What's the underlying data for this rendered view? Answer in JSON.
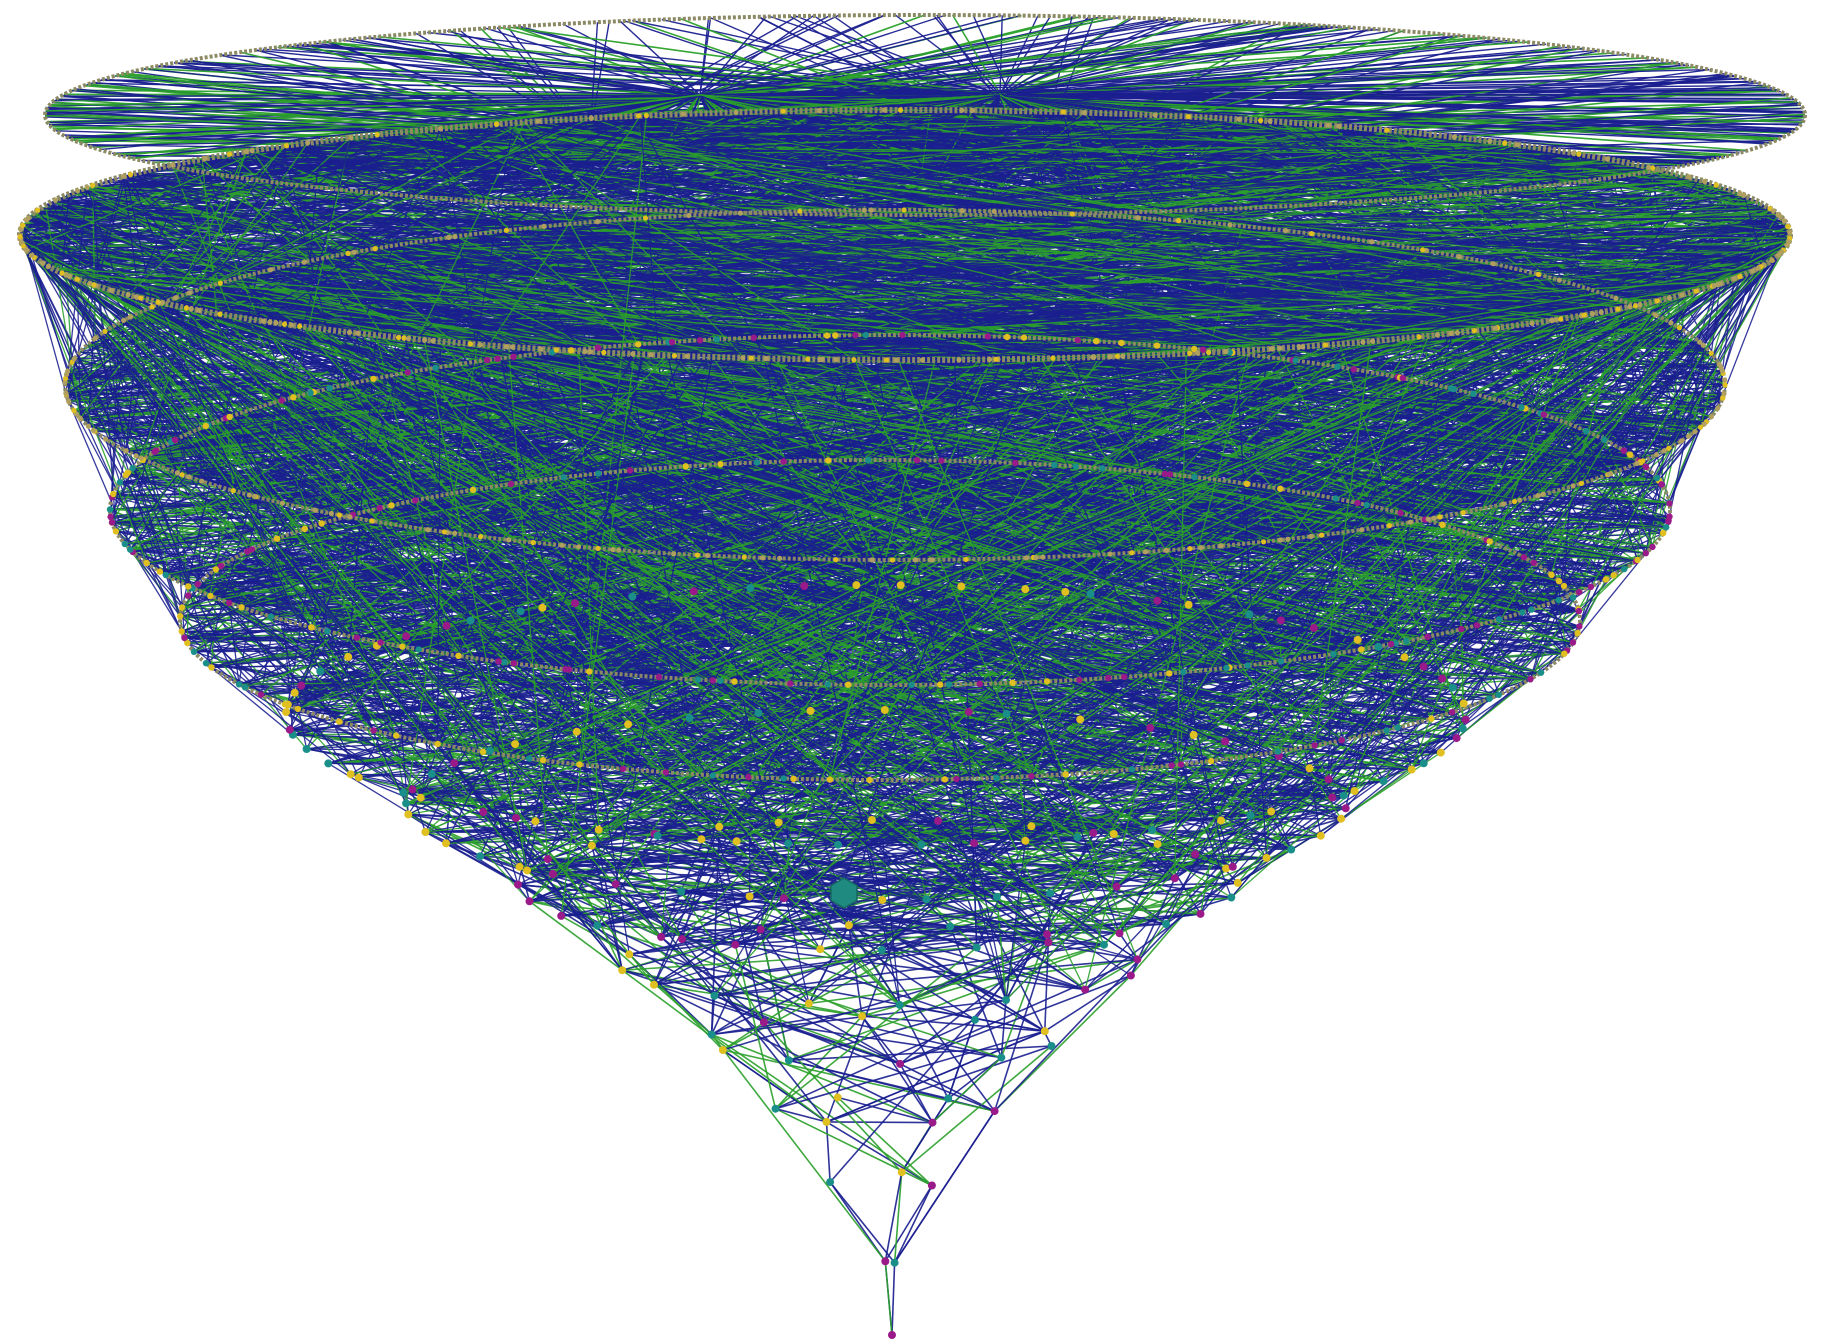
{
  "figure": {
    "kind": "layered network graph drawn as a 3D cone",
    "background_color": "#ffffff",
    "edge_colors": {
      "primary": "#1a1f8f",
      "secondary": "#2aa02a"
    },
    "node_colors": [
      "#e0c020",
      "#9a1a8a",
      "#1a8f8a",
      "#b0a060"
    ],
    "ring_color": "#8c8a64",
    "hub_color": "#1f8a80",
    "layer_count": 12,
    "has_text": false
  }
}
